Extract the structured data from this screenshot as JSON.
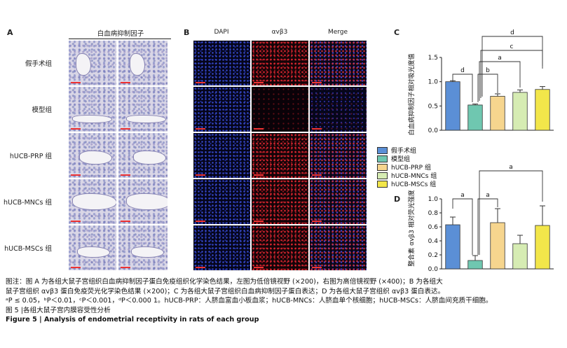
{
  "panel_a": {
    "label": "A",
    "header": "白血病抑制因子",
    "rows": [
      "假手术组",
      "模型组",
      "hUCB-PRP 组",
      "hUCB-MNCs 组",
      "hUCB-MSCs 组"
    ]
  },
  "panel_b": {
    "label": "B",
    "columns": [
      "DAPI",
      "αvβ3",
      "Merge"
    ]
  },
  "legend": {
    "items": [
      "假手术组",
      "模型组",
      "hUCB-PRP 组",
      "hUCB-MNCs 组",
      "hUCB-MSCs 组"
    ],
    "colors": [
      "#5b8fd6",
      "#6fc7b0",
      "#f6d58e",
      "#d6ecb3",
      "#f2e64a"
    ]
  },
  "chart_data": [
    {
      "type": "bar",
      "panel": "C",
      "ylabel": "白血病抑制因子相对吸光度值",
      "ylim": [
        0,
        1.5
      ],
      "yticks": [
        "0.0",
        "0.5",
        "1.0",
        "1.5"
      ],
      "categories": [
        "假手术组",
        "模型组",
        "hUCB-PRP 组",
        "hUCB-MNCs 组",
        "hUCB-MSCs 组"
      ],
      "values": [
        1.0,
        0.52,
        0.7,
        0.78,
        0.84
      ],
      "errors": [
        0.02,
        0.02,
        0.05,
        0.05,
        0.06
      ],
      "significance": [
        {
          "from": 0,
          "to": 1,
          "label": "d"
        },
        {
          "from": 1,
          "to": 2,
          "label": "b"
        },
        {
          "from": 1,
          "to": 3,
          "label": "a"
        },
        {
          "from": 1,
          "to": 4,
          "label": "c"
        },
        {
          "from": 1,
          "to": 4,
          "label": "d"
        }
      ]
    },
    {
      "type": "bar",
      "panel": "D",
      "ylabel": "整合素 αvβ3 相对荧光强度",
      "ylim": [
        0,
        1.0
      ],
      "yticks": [
        "0.0",
        "0.2",
        "0.4",
        "0.6",
        "0.8",
        "1.0"
      ],
      "categories": [
        "假手术组",
        "模型组",
        "hUCB-PRP 组",
        "hUCB-MNCs 组",
        "hUCB-MSCs 组"
      ],
      "values": [
        0.63,
        0.12,
        0.66,
        0.36,
        0.62
      ],
      "errors": [
        0.11,
        0.07,
        0.2,
        0.12,
        0.28
      ],
      "significance": [
        {
          "from": 0,
          "to": 1,
          "label": "a"
        },
        {
          "from": 1,
          "to": 2,
          "label": "a"
        },
        {
          "from": 1,
          "to": 4,
          "label": "a"
        }
      ]
    }
  ],
  "caption": {
    "line1": "图注：图 A 为各组大鼠子宫组织白血病抑制因子蛋白免疫组织化学染色结果，左图为低倍镜视野 (×200)，右图为高倍镜视野 (×400)；B 为各组大",
    "line2": "鼠子宫组织 αvβ3 蛋白免疫荧光化学染色结果 (×200)；C 为各组大鼠子宫组织白血病抑制因子蛋白表达；D 为各组大鼠子宫组织 αvβ3 蛋白表达。",
    "line3": "ᵃP ≤ 0.05，ᵇP＜0.01，ᶜP＜0.001，ᵈP＜0.000 1。hUCB-PRP：人脐血富血小板血浆；hUCB-MNCs：人脐血单个核细胞；hUCB-MSCs：人脐血间充质干细胞。",
    "title_cn": "图 5  |各组大鼠子宫内膜容受性分析",
    "title_en": "Figure 5  |  Analysis of endometrial receptivity in rats of each group"
  }
}
